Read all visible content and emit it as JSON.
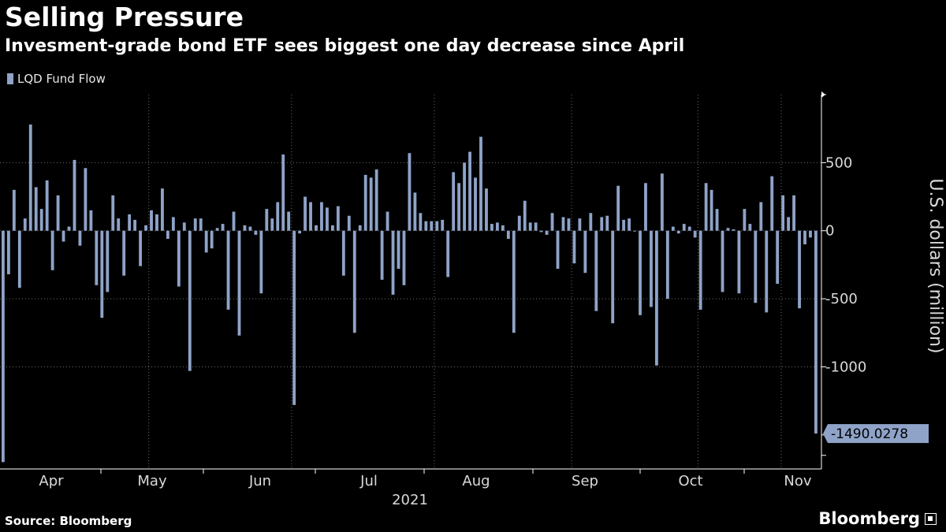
{
  "header": {
    "title": "Selling Pressure",
    "subtitle": "Invesment-grade bond ETF sees biggest one day decrease since April"
  },
  "legend": {
    "label": "LQD Fund Flow",
    "color": "#8fa3c8"
  },
  "footer": {
    "source": "Source: Bloomberg",
    "brand": "Bloomberg"
  },
  "colors": {
    "bar": "#8fa3c8",
    "background": "#000000",
    "grid": "#6b6b6b",
    "axis_text": "#d9d9d9"
  },
  "chart_data": {
    "type": "bar",
    "title": "Selling Pressure",
    "subtitle": "Invesment-grade bond ETF sees biggest one day decrease since April",
    "ylabel": "U.S. dollars (million)",
    "xlabel": "2021",
    "ylim": [
      -1750,
      1000
    ],
    "yticks": [
      500,
      0,
      -500,
      -1000
    ],
    "ytick_labels": [
      "500",
      "0",
      "-500",
      "-1000"
    ],
    "month_labels": [
      "Apr",
      "May",
      "Jun",
      "Jul",
      "Aug",
      "Sep",
      "Oct",
      "Nov"
    ],
    "year_label": "2021",
    "last_value_label": "-1490.0278",
    "grid": true,
    "legend_position": "top-left",
    "series": [
      {
        "name": "LQD Fund Flow",
        "months": [
          {
            "month": "Apr",
            "values": [
              -1700,
              -320,
              300,
              -420,
              90,
              780,
              320,
              160,
              370,
              -290,
              260,
              -80,
              30,
              520,
              -110,
              460,
              150,
              -400,
              -640,
              -450,
              260,
              90,
              -330,
              120,
              80,
              -260,
              40
            ]
          },
          {
            "month": "May",
            "values": [
              150,
              120,
              310,
              -60,
              100,
              -410,
              60,
              -1030,
              90,
              90,
              -160,
              -130,
              20,
              50,
              -580,
              140,
              -770,
              40,
              30,
              -30,
              -460,
              160,
              90,
              210,
              560,
              140
            ]
          },
          {
            "month": "Jun",
            "values": [
              -1280,
              -20,
              250,
              210,
              40,
              210,
              170,
              40,
              180,
              -330,
              110,
              -750,
              40,
              410,
              390,
              450,
              -360,
              140,
              -470,
              -280,
              -400,
              570,
              280,
              130,
              70,
              70
            ]
          },
          {
            "month": "Jul",
            "values": [
              70,
              80,
              -340,
              430,
              350,
              500,
              580,
              390,
              690,
              310,
              50,
              60,
              40,
              -60,
              -750,
              110,
              220,
              60,
              60,
              -10,
              -30,
              130,
              -280,
              100,
              90
            ]
          },
          {
            "month": "Aug",
            "values": [
              -240,
              90,
              -310,
              130,
              -590,
              100,
              110,
              -680,
              330,
              80,
              90,
              0,
              -620,
              350,
              -560,
              -990,
              420,
              -500,
              30,
              -20,
              50,
              30,
              -50
            ]
          },
          {
            "month": "Sep",
            "values": [
              -580,
              350,
              300,
              160,
              -450,
              20,
              10,
              -460,
              160,
              50,
              -530,
              210,
              -600,
              400,
              -390,
              260,
              100,
              260,
              -570,
              -100,
              -50,
              -1490
            ]
          }
        ]
      }
    ]
  }
}
